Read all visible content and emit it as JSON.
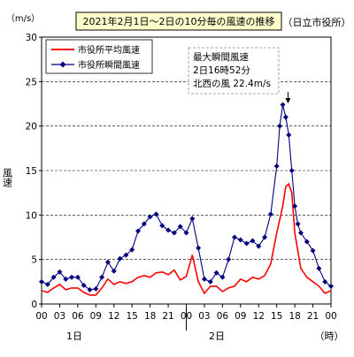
{
  "chart_data": {
    "type": "line",
    "title": "2021年2月1日～2日の10分毎の風速の推移",
    "subtitle": "（日立市役所）",
    "unit_label": "（m/s）",
    "ylabel": "風速",
    "xlabel": "（時）",
    "ylim": [
      0,
      30
    ],
    "y_ticks": [
      "0",
      "5",
      "10",
      "15",
      "20",
      "25",
      "30"
    ],
    "x_ticks": [
      "00",
      "03",
      "06",
      "09",
      "12",
      "15",
      "18",
      "21",
      "00",
      "03",
      "06",
      "09",
      "12",
      "15",
      "18",
      "21",
      "00"
    ],
    "day_labels": [
      "1日",
      "2日"
    ],
    "grid": "horizontal dashed",
    "legend_position": "top-left",
    "annotation": {
      "lines": [
        "最大瞬間風速",
        "2日16時52分",
        "北西の風 22.4m/s"
      ],
      "arrow_x_hour": 40.87
    },
    "series": [
      {
        "name": "市役所平均風速",
        "color": "#ff0000",
        "marker": "none",
        "x": [
          0,
          1,
          2,
          3,
          4,
          5,
          6,
          7,
          8,
          9,
          10,
          11,
          12,
          13,
          14,
          15,
          16,
          17,
          18,
          19,
          20,
          21,
          22,
          23,
          24,
          25,
          26,
          27,
          28,
          29,
          30,
          31,
          32,
          33,
          34,
          35,
          36,
          37,
          38,
          39,
          40,
          40.5,
          41,
          41.5,
          42,
          43,
          44,
          45,
          46,
          47,
          48
        ],
        "values": [
          1.5,
          1.3,
          1.8,
          2.2,
          1.6,
          1.8,
          1.8,
          1.3,
          1.0,
          1.0,
          1.8,
          2.8,
          2.2,
          2.5,
          2.3,
          2.5,
          3.0,
          3.2,
          3.0,
          3.5,
          3.6,
          3.3,
          3.8,
          2.7,
          3.1,
          5.5,
          2.5,
          1.2,
          2.0,
          2.0,
          1.4,
          1.8,
          2.0,
          2.8,
          2.5,
          3.0,
          2.8,
          3.2,
          4.5,
          8.0,
          11.0,
          13.2,
          13.5,
          12.5,
          8.0,
          4.0,
          3.0,
          2.5,
          2.0,
          1.2,
          1.5
        ]
      },
      {
        "name": "市役所瞬間風速",
        "color": "#000080",
        "marker": "diamond",
        "x": [
          0,
          1,
          2,
          3,
          4,
          5,
          6,
          7,
          8,
          9,
          10,
          11,
          12,
          13,
          14,
          15,
          16,
          17,
          18,
          19,
          20,
          21,
          22,
          23,
          24,
          25,
          26,
          27,
          28,
          29,
          30,
          31,
          32,
          33,
          34,
          35,
          36,
          37,
          38,
          39,
          39.5,
          40,
          40.5,
          41,
          41.5,
          42,
          42.5,
          43,
          44,
          45,
          46,
          47,
          48
        ],
        "values": [
          2.5,
          2.2,
          3.0,
          3.6,
          2.8,
          3.0,
          3.0,
          2.1,
          1.6,
          1.7,
          3.0,
          4.7,
          3.7,
          5.1,
          5.5,
          6.1,
          8.2,
          9.0,
          9.8,
          10.1,
          8.8,
          8.3,
          8.0,
          8.7,
          8.0,
          9.6,
          6.3,
          2.8,
          2.5,
          3.5,
          3.0,
          5.0,
          7.5,
          7.2,
          6.8,
          7.1,
          6.5,
          7.5,
          10.1,
          15.5,
          20.0,
          22.4,
          21.0,
          19.0,
          15.0,
          11.0,
          9.0,
          8.0,
          7.0,
          6.0,
          4.0,
          2.5,
          2.0
        ]
      }
    ]
  }
}
